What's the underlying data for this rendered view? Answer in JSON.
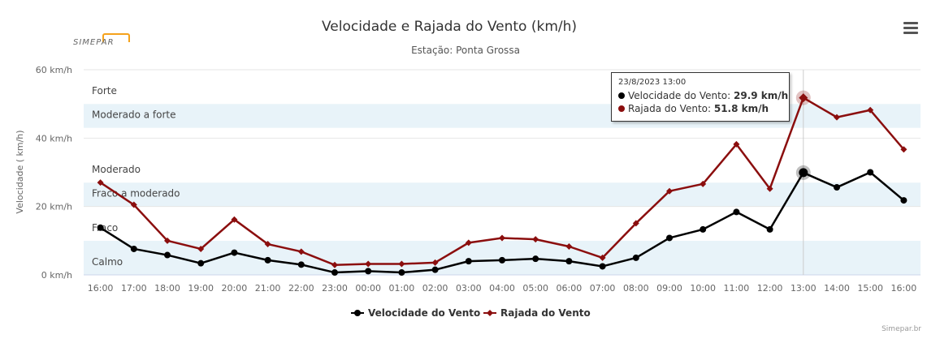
{
  "chart_data": {
    "type": "line",
    "title": "Velocidade e Rajada do Vento (km/h)",
    "subtitle": "Estação: Ponta Grossa",
    "ylabel": "Velocidade ( km/h)",
    "ylim": [
      0,
      60
    ],
    "yticks": [
      0,
      20,
      40,
      60
    ],
    "ytick_labels": [
      "0 km/h",
      "20 km/h",
      "40 km/h",
      "60 km/h"
    ],
    "categories": [
      "16:00",
      "17:00",
      "18:00",
      "19:00",
      "20:00",
      "21:00",
      "22:00",
      "23:00",
      "00:00",
      "01:00",
      "02:00",
      "03:00",
      "04:00",
      "05:00",
      "06:00",
      "07:00",
      "08:00",
      "09:00",
      "10:00",
      "11:00",
      "12:00",
      "13:00",
      "14:00",
      "15:00",
      "16:00"
    ],
    "series": [
      {
        "name": "Velocidade do Vento",
        "color": "#000000",
        "marker": "circle",
        "values": [
          13.8,
          7.6,
          5.8,
          3.4,
          6.5,
          4.3,
          3.0,
          0.7,
          1.1,
          0.7,
          1.5,
          4.0,
          4.3,
          4.7,
          4.0,
          2.5,
          5.0,
          10.8,
          13.3,
          18.4,
          13.3,
          29.9,
          25.6,
          30.0,
          21.8
        ]
      },
      {
        "name": "Rajada do Vento",
        "color": "#8b0e0e",
        "marker": "diamond",
        "values": [
          27.0,
          20.5,
          10.0,
          7.6,
          16.2,
          9.0,
          6.8,
          2.9,
          3.2,
          3.2,
          3.6,
          9.4,
          10.8,
          10.4,
          8.3,
          5.0,
          15.1,
          24.5,
          26.6,
          38.2,
          25.2,
          51.8,
          46.1,
          48.2,
          36.7
        ]
      }
    ],
    "bands": [
      {
        "label": "Calmo",
        "from": 0,
        "to": 10,
        "fill": "#e8f3f9"
      },
      {
        "label": "Fraco",
        "from": 10,
        "to": 20,
        "fill": "#ffffff"
      },
      {
        "label": "Fraco a moderado",
        "from": 20,
        "to": 27,
        "fill": "#e8f3f9"
      },
      {
        "label": "Moderado",
        "from": 27,
        "to": 43,
        "fill": "#ffffff"
      },
      {
        "label": "Moderado a forte",
        "from": 43,
        "to": 50,
        "fill": "#e8f3f9"
      },
      {
        "label": "Forte",
        "from": 50,
        "to": 60,
        "fill": "#ffffff"
      }
    ],
    "highlight_index": 21,
    "legend_placement": "bottom-center",
    "grid": true
  },
  "tooltip": {
    "date": "23/8/2023 13:00",
    "rows": [
      {
        "label": "Velocidade do Vento: ",
        "value": "29.9 km/h",
        "color": "#000000"
      },
      {
        "label": "Rajada do Vento: ",
        "value": "51.8 km/h",
        "color": "#8b0e0e"
      }
    ]
  },
  "logo": {
    "text": "SIMEPAR"
  },
  "credit": "Simepar.br"
}
